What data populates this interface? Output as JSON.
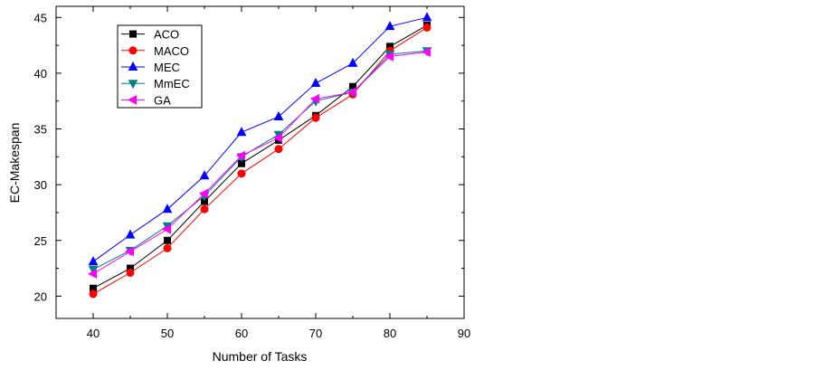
{
  "chart_data": {
    "type": "line",
    "title": "",
    "xlabel": "Number of Tasks",
    "ylabel": "EC-Makespan",
    "xlim": [
      35,
      90
    ],
    "ylim": [
      18,
      46
    ],
    "x_ticks": [
      40,
      50,
      60,
      70,
      80,
      90
    ],
    "y_ticks": [
      20,
      25,
      30,
      35,
      40,
      45
    ],
    "x": [
      40,
      45,
      50,
      55,
      60,
      65,
      70,
      75,
      80,
      85
    ],
    "grid": false,
    "legend_position": "top-left",
    "series": [
      {
        "name": "ACO",
        "color": "#000000",
        "marker": "square",
        "values": [
          20.7,
          22.5,
          25.0,
          28.5,
          31.9,
          34.0,
          36.2,
          38.8,
          42.4,
          44.3
        ]
      },
      {
        "name": "MACO",
        "color": "#ff0000",
        "marker": "circle",
        "values": [
          20.2,
          22.1,
          24.3,
          27.8,
          31.0,
          33.2,
          36.0,
          38.1,
          42.0,
          44.1
        ]
      },
      {
        "name": "MEC",
        "color": "#0000ff",
        "marker": "triangle-up",
        "values": [
          23.1,
          25.5,
          27.8,
          30.8,
          34.7,
          36.1,
          39.1,
          40.9,
          44.2,
          45.0
        ]
      },
      {
        "name": "MmEC",
        "color": "#008080",
        "marker": "triangle-down",
        "values": [
          22.4,
          24.1,
          26.3,
          29.0,
          32.5,
          34.5,
          37.5,
          38.3,
          41.7,
          42.0
        ]
      },
      {
        "name": "GA",
        "color": "#ff00ff",
        "marker": "triangle-left",
        "values": [
          22.0,
          24.0,
          26.0,
          29.2,
          32.6,
          34.2,
          37.7,
          38.3,
          41.5,
          41.9
        ]
      }
    ]
  }
}
